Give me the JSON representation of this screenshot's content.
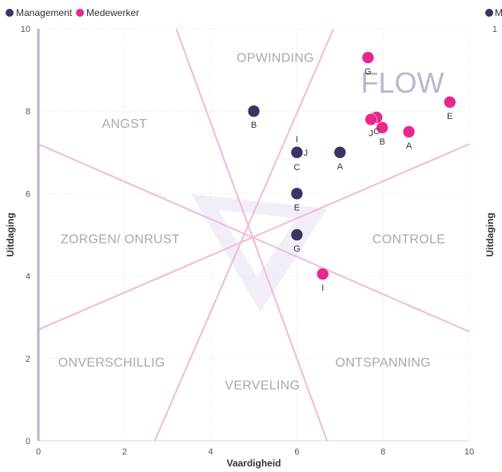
{
  "chart_data": {
    "type": "scatter",
    "legend": {
      "placement": "top-left",
      "entries": [
        {
          "name": "Management",
          "color": "#3b3266"
        },
        {
          "name": "Medewerker",
          "color": "#e6288c"
        }
      ],
      "right_fragment": {
        "name": "M",
        "color": "#3b3266"
      }
    },
    "xlabel": "Vaardigheid",
    "ylabel": "Uitdaging",
    "ylabel_right": "Uitdaging",
    "xlim": [
      0,
      10
    ],
    "ylim": [
      0,
      10
    ],
    "x_ticks": [
      "0",
      "2",
      "4",
      "6",
      "8",
      "10"
    ],
    "y_ticks": [
      "0",
      "2",
      "4",
      "6",
      "8",
      "10"
    ],
    "y_right_top_tick": "1",
    "center": [
      5,
      4.9
    ],
    "guide_lines": [
      {
        "x1": 2.7,
        "y1": 0,
        "x2": 6.85,
        "y2": 10
      },
      {
        "x1": 6.7,
        "y1": 0,
        "x2": 3.2,
        "y2": 10
      },
      {
        "x1": 0,
        "y1": 2.7,
        "x2": 10,
        "y2": 7.2
      },
      {
        "x1": 0,
        "y1": 7.2,
        "x2": 10,
        "y2": 2.65
      }
    ],
    "guide_color": "#f2b8d8",
    "regions": [
      {
        "label": "OPWINDING",
        "x": 5.5,
        "y": 9.2
      },
      {
        "label": "ANGST",
        "x": 2.0,
        "y": 7.6
      },
      {
        "label": "ZORGEN/ ONRUST",
        "x": 1.9,
        "y": 4.8
      },
      {
        "label": "CONTROLE",
        "x": 8.6,
        "y": 4.8
      },
      {
        "label": "ONVERSCHILLIG",
        "x": 1.7,
        "y": 1.8
      },
      {
        "label": "VERVELING",
        "x": 5.2,
        "y": 1.25
      },
      {
        "label": "ONTSPANNING",
        "x": 8.0,
        "y": 1.8
      }
    ],
    "flow_label": {
      "label": "FLOW",
      "x": 8.45,
      "y": 8.45
    },
    "series": [
      {
        "name": "Management",
        "color": "#3b3266",
        "points": [
          {
            "x": 5.0,
            "y": 8.0,
            "label": "B"
          },
          {
            "x": 6.0,
            "y": 7.0,
            "label": "C"
          },
          {
            "x": 6.0,
            "y": 7.0,
            "label": "I"
          },
          {
            "x": 6.0,
            "y": 7.0,
            "label": "J"
          },
          {
            "x": 7.0,
            "y": 7.0,
            "label": "A"
          },
          {
            "x": 6.0,
            "y": 6.0,
            "label": "E"
          },
          {
            "x": 6.0,
            "y": 5.0,
            "label": "G"
          }
        ]
      },
      {
        "name": "Medewerker",
        "color": "#e6288c",
        "points": [
          {
            "x": 7.65,
            "y": 9.3,
            "label": "G"
          },
          {
            "x": 9.55,
            "y": 8.22,
            "label": "E"
          },
          {
            "x": 7.85,
            "y": 7.85,
            "label": "C"
          },
          {
            "x": 7.72,
            "y": 7.8,
            "label": "J"
          },
          {
            "x": 7.98,
            "y": 7.6,
            "label": "B"
          },
          {
            "x": 8.6,
            "y": 7.5,
            "label": "A"
          },
          {
            "x": 6.6,
            "y": 4.05,
            "label": "I"
          }
        ]
      }
    ]
  }
}
